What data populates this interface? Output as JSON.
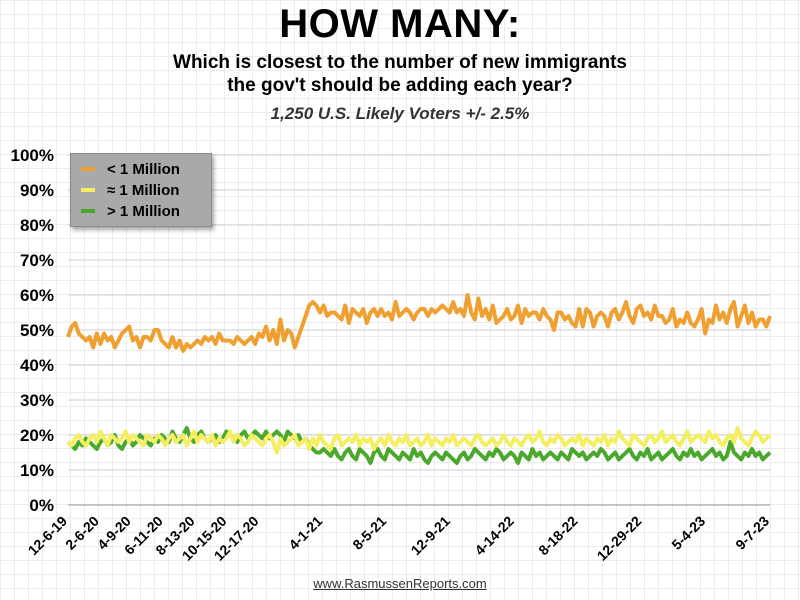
{
  "header": {
    "title": "HOW MANY:",
    "subtitle_line1": "Which is closest to the number of new immigrants",
    "subtitle_line2": "the gov't should be adding each year?",
    "note": "1,250 U.S. Likely Voters +/- 2.5%"
  },
  "footer": {
    "source": "www.RasmussenReports.com"
  },
  "colors": {
    "less": "#f0a030",
    "about": "#f4ee60",
    "more": "#4aa82c",
    "grid": "#cfcfcf"
  },
  "chart_data": {
    "type": "line",
    "ylim": [
      0,
      100
    ],
    "y_ticks": [
      "0%",
      "10%",
      "20%",
      "30%",
      "40%",
      "50%",
      "60%",
      "70%",
      "80%",
      "90%",
      "100%"
    ],
    "x_ticks": [
      "12-6-19",
      "2-6-20",
      "4-9-20",
      "6-11-20",
      "8-13-20",
      "10-15-20",
      "12-17-20",
      "4-1-21",
      "8-5-21",
      "12-9-21",
      "4-14-22",
      "8-18-22",
      "12-29-22",
      "5-4-23",
      "9-7-23"
    ],
    "x_ticks_note": "first 7 ticks ~9 weeks apart, remaining ~18 weeks apart",
    "legend_position": "top-left",
    "grid": true,
    "series": [
      {
        "name": "< 1 Million",
        "values": [
          48,
          51,
          52,
          49,
          48,
          47,
          48,
          45,
          49,
          46,
          49,
          47,
          48,
          45,
          47,
          49,
          50,
          51,
          47,
          48,
          45,
          48,
          48,
          47,
          50,
          50,
          47,
          46,
          45,
          48,
          45,
          47,
          44,
          46,
          45,
          46,
          47,
          46,
          48,
          47,
          48,
          46,
          49,
          47,
          47,
          47,
          46,
          48,
          47,
          46,
          47,
          48,
          46,
          49,
          48,
          51,
          47,
          50,
          46,
          53,
          47,
          50,
          49,
          45,
          48,
          51,
          54,
          57,
          58,
          57,
          55,
          57,
          54,
          55,
          55,
          54,
          53,
          57,
          52,
          56,
          55,
          54,
          56,
          52,
          55,
          56,
          54,
          56,
          54,
          55,
          53,
          58,
          54,
          55,
          56,
          55,
          53,
          55,
          56,
          56,
          54,
          56,
          55,
          56,
          57,
          56,
          55,
          58,
          55,
          56,
          54,
          60,
          55,
          53,
          59,
          54,
          56,
          53,
          57,
          52,
          53,
          54,
          56,
          53,
          54,
          57,
          52,
          56,
          54,
          55,
          55,
          53,
          56,
          54,
          53,
          50,
          55,
          55,
          53,
          54,
          52,
          51,
          56,
          51,
          56,
          55,
          51,
          54,
          55,
          54,
          51,
          55,
          56,
          53,
          55,
          58,
          54,
          52,
          56,
          57,
          54,
          55,
          53,
          57,
          54,
          54,
          52,
          53,
          56,
          51,
          53,
          52,
          55,
          52,
          51,
          53,
          56,
          49,
          53,
          52,
          57,
          53,
          55,
          52,
          56,
          58,
          51,
          54,
          57,
          52,
          55,
          51,
          53,
          53,
          51,
          54
        ]
      },
      {
        "name": "≈ 1 Million",
        "values": [
          18,
          17,
          19,
          20,
          18,
          17,
          19,
          20,
          18,
          21,
          19,
          17,
          20,
          19,
          18,
          19,
          21,
          18,
          20,
          19,
          18,
          17,
          20,
          19,
          18,
          20,
          19,
          17,
          19,
          20,
          18,
          19,
          20,
          17,
          19,
          21,
          18,
          20,
          19,
          18,
          20,
          17,
          19,
          18,
          19,
          21,
          18,
          20,
          19,
          17,
          18,
          20,
          19,
          18,
          17,
          19,
          20,
          18,
          15,
          19,
          17,
          18,
          19,
          20,
          17,
          18,
          19,
          16,
          19,
          17,
          20,
          18,
          17,
          16,
          19,
          20,
          17,
          18,
          19,
          18,
          20,
          17,
          19,
          18,
          19,
          16,
          18,
          19,
          17,
          20,
          18,
          17,
          19,
          18,
          20,
          17,
          18,
          19,
          17,
          18,
          20,
          17,
          19,
          18,
          17,
          19,
          18,
          20,
          17,
          18,
          19,
          18,
          17,
          19,
          20,
          18,
          17,
          18,
          19,
          17,
          18,
          20,
          18,
          17,
          19,
          18,
          17,
          19,
          20,
          18,
          19,
          21,
          18,
          17,
          19,
          18,
          20,
          19,
          17,
          18,
          19,
          18,
          20,
          17,
          19,
          18,
          17,
          19,
          18,
          20,
          17,
          19,
          18,
          21,
          19,
          18,
          17,
          20,
          19,
          18,
          17,
          19,
          20,
          18,
          19,
          21,
          18,
          19,
          20,
          18,
          17,
          19,
          21,
          18,
          19,
          20,
          19,
          18,
          21,
          19,
          20,
          18,
          17,
          19,
          20,
          18,
          22,
          19,
          18,
          17,
          19,
          21,
          20,
          18,
          19,
          20
        ]
      },
      {
        "name": "> 1 Million",
        "values": [
          18,
          17,
          16,
          18,
          17,
          19,
          18,
          17,
          16,
          18,
          19,
          17,
          18,
          20,
          17,
          16,
          18,
          19,
          17,
          18,
          20,
          19,
          18,
          17,
          19,
          18,
          20,
          19,
          18,
          21,
          19,
          18,
          20,
          22,
          19,
          18,
          20,
          21,
          19,
          18,
          19,
          20,
          18,
          19,
          21,
          20,
          19,
          18,
          20,
          21,
          19,
          20,
          21,
          20,
          19,
          21,
          19,
          20,
          21,
          20,
          18,
          21,
          20,
          19,
          20,
          18,
          19,
          17,
          16,
          15,
          15,
          16,
          15,
          14,
          16,
          14,
          13,
          15,
          16,
          14,
          13,
          16,
          15,
          14,
          12,
          15,
          16,
          14,
          13,
          16,
          15,
          14,
          13,
          15,
          14,
          13,
          16,
          14,
          15,
          13,
          12,
          14,
          15,
          14,
          13,
          15,
          14,
          13,
          12,
          14,
          15,
          13,
          14,
          16,
          15,
          14,
          13,
          15,
          14,
          16,
          15,
          13,
          14,
          15,
          14,
          12,
          15,
          14,
          13,
          16,
          14,
          15,
          13,
          14,
          15,
          14,
          13,
          15,
          14,
          13,
          16,
          15,
          14,
          15,
          13,
          14,
          15,
          14,
          16,
          15,
          13,
          14,
          15,
          13,
          14,
          15,
          16,
          14,
          13,
          15,
          14,
          16,
          13,
          14,
          15,
          13,
          14,
          15,
          16,
          14,
          13,
          15,
          14,
          16,
          14,
          15,
          13,
          14,
          15,
          16,
          14,
          15,
          13,
          14,
          18,
          15,
          14,
          13,
          15,
          14,
          16,
          14,
          15,
          13,
          14,
          15
        ]
      }
    ]
  }
}
